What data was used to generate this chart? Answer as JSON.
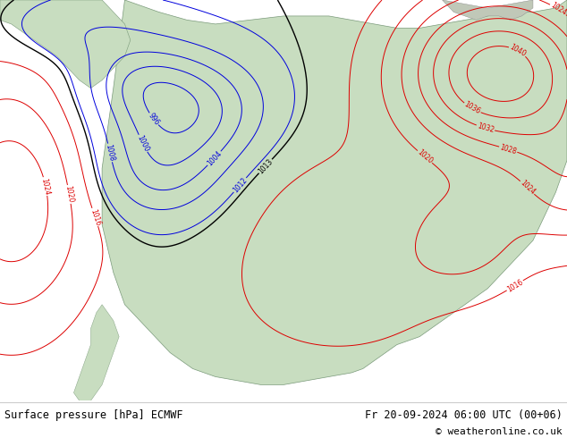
{
  "title_left": "Surface pressure [hPa] ECMWF",
  "title_right": "Fr 20-09-2024 06:00 UTC (00+06)",
  "copyright": "© weatheronline.co.uk",
  "ocean_color": "#e8eef0",
  "land_color": "#c8ddc0",
  "footer_bg": "#ffffff",
  "blue_color": "#0000dd",
  "red_color": "#dd0000",
  "black_color": "#000000",
  "base_pressure": 1013,
  "pressure_min": 984,
  "pressure_max": 1044,
  "pressure_step": 4
}
